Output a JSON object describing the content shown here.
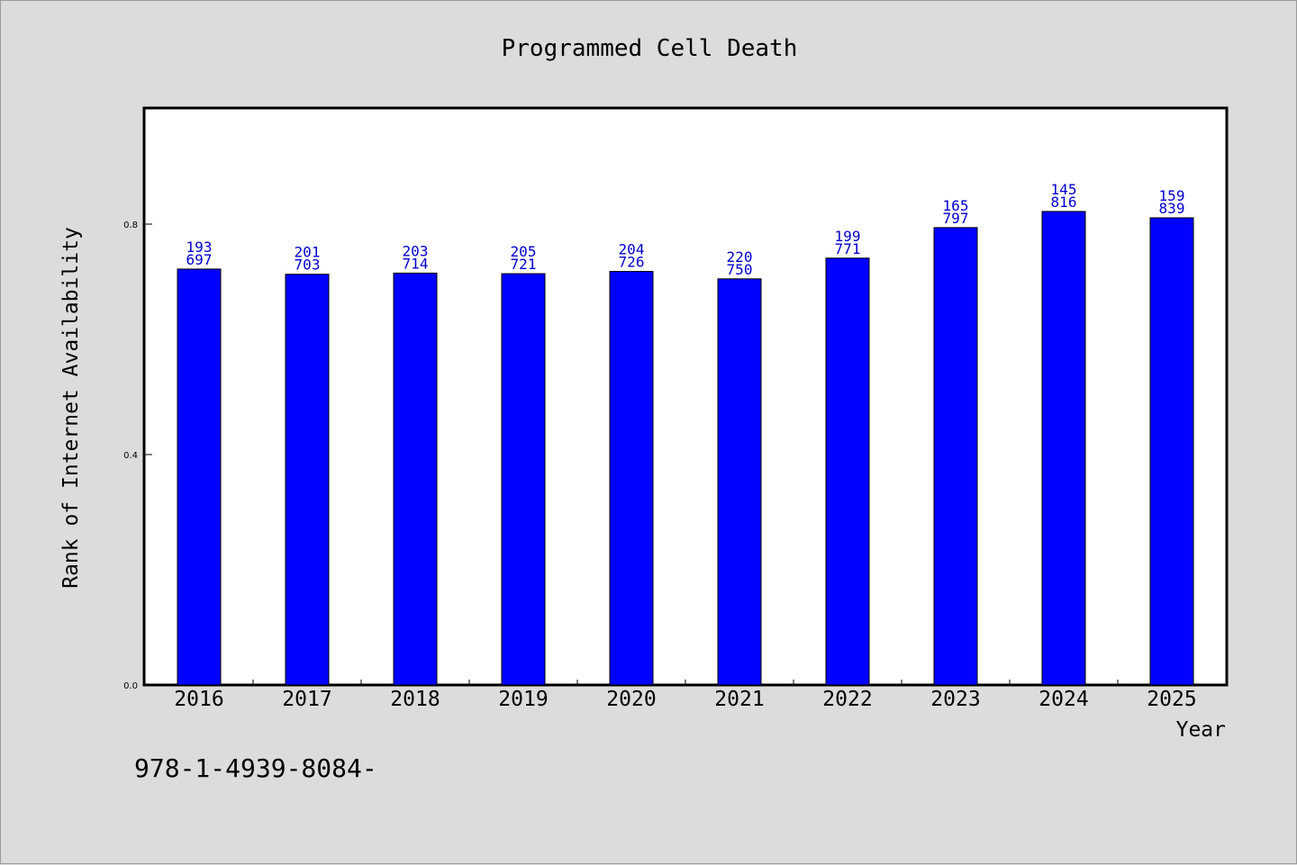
{
  "chart_data": {
    "type": "bar",
    "title": "Programmed Cell Death",
    "xlabel": "Year",
    "ylabel": "Rank of Internet Availability",
    "categories": [
      "2016",
      "2017",
      "2018",
      "2019",
      "2020",
      "2021",
      "2022",
      "2023",
      "2024",
      "2025"
    ],
    "values": [
      0.722,
      0.713,
      0.715,
      0.714,
      0.718,
      0.705,
      0.741,
      0.794,
      0.822,
      0.811
    ],
    "bar_labels_top": [
      "193",
      "201",
      "203",
      "205",
      "204",
      "220",
      "199",
      "165",
      "145",
      "159"
    ],
    "bar_labels_bottom": [
      "697",
      "703",
      "714",
      "721",
      "726",
      "750",
      "771",
      "797",
      "816",
      "839"
    ],
    "ylim": [
      0,
      1.0
    ],
    "yticks": [
      "0.0",
      "0.4",
      "0.8"
    ],
    "ytick_values": [
      0.0,
      0.4,
      0.8
    ],
    "grid": false,
    "bar_color": "#0000ff",
    "label_color": "#0000cc"
  },
  "footer": {
    "text": "978-1-4939-8084-"
  }
}
